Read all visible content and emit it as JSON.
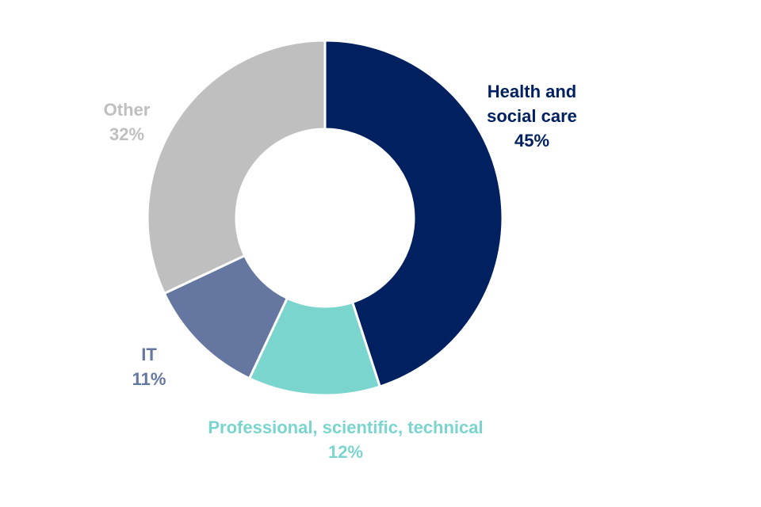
{
  "chart_data": {
    "type": "pie",
    "donut": true,
    "slices": [
      {
        "label": "Health and social care",
        "label_lines": [
          "Health and",
          "social care"
        ],
        "value": 45,
        "value_label": "45%",
        "color": "#002060"
      },
      {
        "label": "Professional, scientific, technical",
        "label_lines": [
          "Professional, scientific, technical"
        ],
        "value": 12,
        "value_label": "12%",
        "color": "#7AD5CE"
      },
      {
        "label": "IT",
        "label_lines": [
          "IT"
        ],
        "value": 11,
        "value_label": "11%",
        "color": "#6577A0"
      },
      {
        "label": "Other",
        "label_lines": [
          "Other"
        ],
        "value": 32,
        "value_label": "32%",
        "color": "#BFBFBF"
      }
    ],
    "start_angle": "top",
    "direction": "clockwise",
    "legend": "none"
  }
}
